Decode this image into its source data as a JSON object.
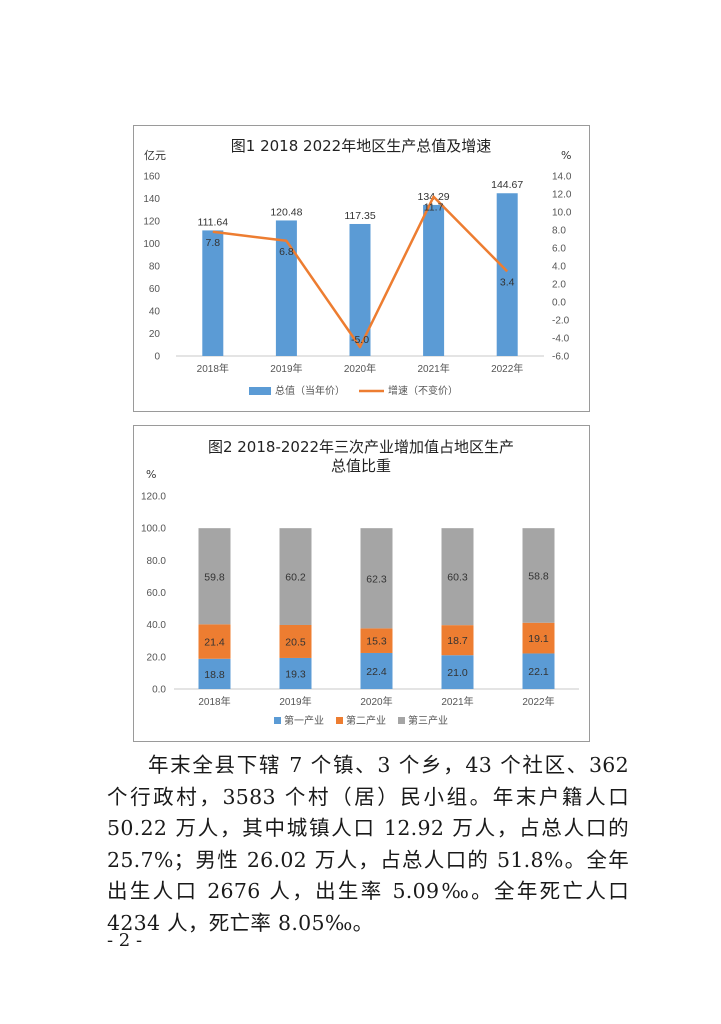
{
  "chart_data": [
    {
      "type": "bar+line",
      "title": "图1  2018  2022年地区生产总值及增速",
      "ylabel_left": "亿元",
      "ylabel_right": "%",
      "categories": [
        "2018年",
        "2019年",
        "2020年",
        "2021年",
        "2022年"
      ],
      "left_ticks": [
        "0",
        "20",
        "40",
        "60",
        "80",
        "100",
        "120",
        "140",
        "160"
      ],
      "right_ticks": [
        "-6.0",
        "-4.0",
        "-2.0",
        "0.0",
        "2.0",
        "4.0",
        "6.0",
        "8.0",
        "10.0",
        "12.0",
        "14.0"
      ],
      "ylim_left": [
        0,
        160
      ],
      "ylim_right": [
        -6,
        14
      ],
      "series": [
        {
          "name": "总值（当年价）",
          "kind": "bar",
          "axis": "left",
          "values": [
            111.64,
            120.48,
            117.35,
            134.29,
            144.67
          ],
          "labels": [
            "111.64",
            "120.48",
            "117.35",
            "134.29",
            "144.67"
          ],
          "color": "#5b9bd5"
        },
        {
          "name": "增速（不变价）",
          "kind": "line",
          "axis": "right",
          "values": [
            7.8,
            6.8,
            -5.0,
            11.7,
            3.4
          ],
          "labels": [
            "7.8",
            "6.8",
            "-5.0",
            "11.7",
            "3.4"
          ],
          "color": "#ed7d31"
        }
      ],
      "legend": "bottom",
      "grid": false
    },
    {
      "type": "stacked-bar",
      "title_line1": "图2   2018-2022年三次产业增加值占地区生产",
      "title_line2": "总值比重",
      "ylabel": "%",
      "categories": [
        "2018年",
        "2019年",
        "2020年",
        "2021年",
        "2022年"
      ],
      "y_ticks": [
        "0.0",
        "20.0",
        "40.0",
        "60.0",
        "80.0",
        "100.0",
        "120.0"
      ],
      "ylim": [
        0,
        120
      ],
      "series": [
        {
          "name": "第一产业",
          "values": [
            18.8,
            19.3,
            22.4,
            21.0,
            22.1
          ],
          "labels": [
            "18.8",
            "19.3",
            "22.4",
            "21.0",
            "22.1"
          ],
          "color": "#5b9bd5"
        },
        {
          "name": "第二产业",
          "values": [
            21.4,
            20.5,
            15.3,
            18.7,
            19.1
          ],
          "labels": [
            "21.4",
            "20.5",
            "15.3",
            "18.7",
            "19.1"
          ],
          "color": "#ed7d31"
        },
        {
          "name": "第三产业",
          "values": [
            59.8,
            60.2,
            62.3,
            60.3,
            58.8
          ],
          "labels": [
            "59.8",
            "60.2",
            "62.3",
            "60.3",
            "58.8"
          ],
          "color": "#a5a5a5"
        }
      ],
      "legend": "bottom",
      "grid": false
    }
  ],
  "body": {
    "paragraph": "年末全县下辖 7 个镇、3 个乡，43 个社区、362 个行政村，3583 个村（居）民小组。年末户籍人口 50.22 万人，其中城镇人口 12.92 万人，占总人口的 25.7%；男性 26.02 万人，占总人口的 51.8%。全年出生人口 2676 人，出生率 5.09‰。全年死亡人口 4234 人，死亡率 8.05‰。",
    "page_number": "- 2 -"
  }
}
